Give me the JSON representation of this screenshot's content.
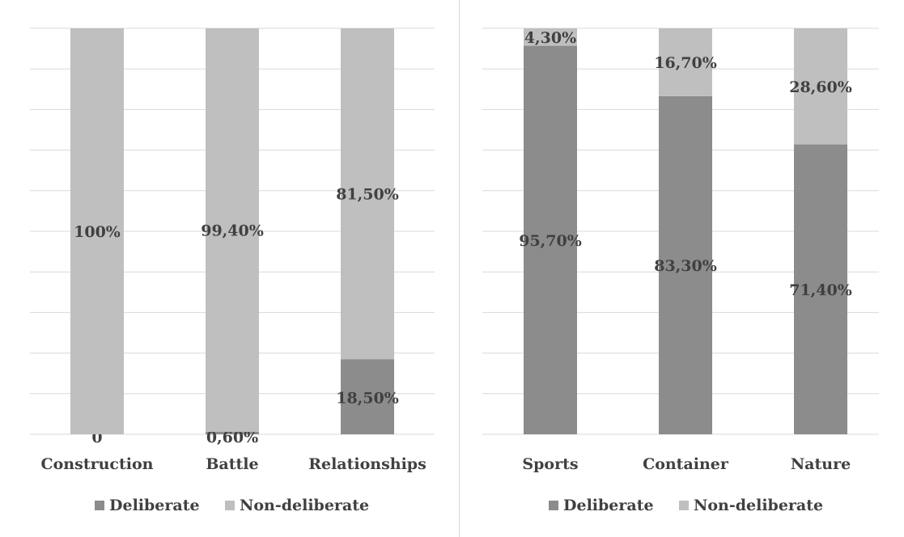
{
  "colors": {
    "deliberate": "#8c8c8c",
    "non_deliberate": "#bfbfbf",
    "grid": "#d9d9d9",
    "text": "#404040"
  },
  "chart_data": [
    {
      "type": "bar",
      "stacked": true,
      "percent_stacked": true,
      "categories": [
        "Construction",
        "Battle",
        "Relationships"
      ],
      "series": [
        {
          "name": "Deliberate",
          "values": [
            0,
            0.6,
            18.5
          ],
          "labels": [
            "0",
            "0,60%",
            "18,50%"
          ]
        },
        {
          "name": "Non-deliberate",
          "values": [
            100,
            99.4,
            81.5
          ],
          "labels": [
            "100%",
            "99,40%",
            "81,50%"
          ]
        }
      ],
      "ylim": [
        0,
        100
      ],
      "grid": true,
      "legend": "bottom"
    },
    {
      "type": "bar",
      "stacked": true,
      "percent_stacked": true,
      "categories": [
        "Sports",
        "Container",
        "Nature"
      ],
      "series": [
        {
          "name": "Deliberate",
          "values": [
            95.7,
            83.3,
            71.4
          ],
          "labels": [
            "95,70%",
            "83,30%",
            "71,40%"
          ]
        },
        {
          "name": "Non-deliberate",
          "values": [
            4.3,
            16.7,
            28.6
          ],
          "labels": [
            "4,30%",
            "16,70%",
            "28,60%"
          ]
        }
      ],
      "ylim": [
        0,
        100
      ],
      "grid": true,
      "legend": "bottom"
    }
  ]
}
